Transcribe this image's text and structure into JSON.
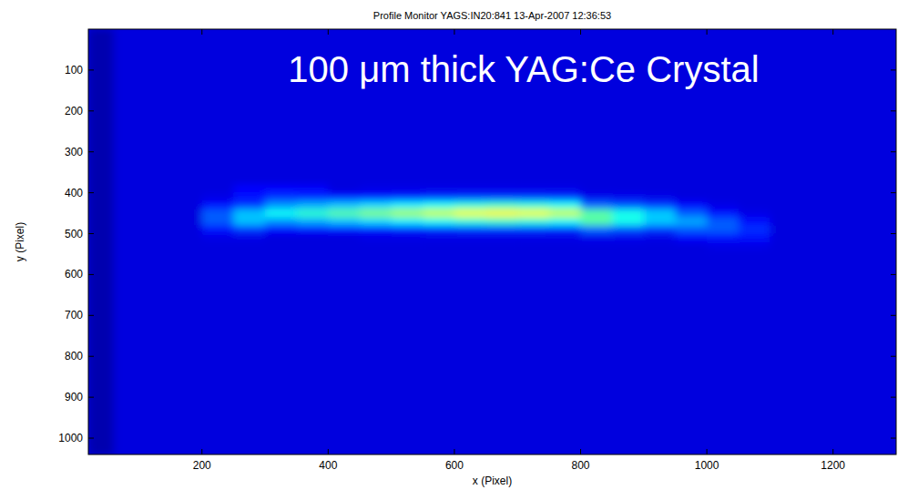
{
  "chart_data": {
    "type": "heatmap",
    "title": "Profile Monitor YAGS:IN20:841 13-Apr-2007 12:36:53",
    "annotation": "100 μm thick YAG:Ce Crystal",
    "x_label": "x (Pixel)",
    "y_label": "y (Pixel)",
    "xlim": [
      20,
      1300
    ],
    "ylim": [
      1040,
      0
    ],
    "xticks": [
      200,
      400,
      600,
      800,
      1000,
      1200
    ],
    "yticks": [
      100,
      200,
      300,
      400,
      500,
      600,
      700,
      800,
      900,
      1000
    ],
    "zlim": [
      0,
      1.3
    ],
    "x_bins": [
      20,
      60,
      200,
      250,
      300,
      350,
      400,
      450,
      500,
      550,
      600,
      650,
      700,
      750,
      800,
      850,
      900,
      950,
      1000,
      1050,
      1100,
      1300
    ],
    "y_bins": [
      0,
      360,
      380,
      400,
      420,
      440,
      460,
      480,
      500,
      520,
      540,
      1040
    ],
    "z": [
      [
        0.06,
        0.12,
        0.12,
        0.12,
        0.12,
        0.12,
        0.12,
        0.12,
        0.12,
        0.12,
        0.12,
        0.12,
        0.12,
        0.12,
        0.12,
        0.12,
        0.12,
        0.12,
        0.12,
        0.12,
        0.12
      ],
      [
        0.06,
        0.12,
        0.12,
        0.12,
        0.12,
        0.12,
        0.12,
        0.12,
        0.12,
        0.12,
        0.12,
        0.12,
        0.12,
        0.12,
        0.12,
        0.12,
        0.12,
        0.12,
        0.12,
        0.12,
        0.12
      ],
      [
        0.06,
        0.12,
        0.12,
        0.17,
        0.17,
        0.16,
        0.12,
        0.13,
        0.13,
        0.13,
        0.13,
        0.13,
        0.13,
        0.13,
        0.12,
        0.12,
        0.12,
        0.12,
        0.12,
        0.12,
        0.12
      ],
      [
        0.06,
        0.12,
        0.13,
        0.18,
        0.22,
        0.21,
        0.19,
        0.19,
        0.2,
        0.21,
        0.22,
        0.22,
        0.22,
        0.21,
        0.14,
        0.14,
        0.13,
        0.12,
        0.12,
        0.12,
        0.12
      ],
      [
        0.06,
        0.12,
        0.18,
        0.23,
        0.35,
        0.38,
        0.41,
        0.44,
        0.47,
        0.5,
        0.53,
        0.55,
        0.53,
        0.5,
        0.29,
        0.26,
        0.23,
        0.16,
        0.13,
        0.12,
        0.12
      ],
      [
        0.06,
        0.12,
        0.28,
        0.41,
        0.5,
        0.55,
        0.6,
        0.65,
        0.7,
        0.75,
        0.8,
        0.82,
        0.8,
        0.75,
        0.6,
        0.51,
        0.42,
        0.28,
        0.18,
        0.13,
        0.12
      ],
      [
        0.06,
        0.12,
        0.28,
        0.41,
        0.35,
        0.38,
        0.41,
        0.44,
        0.47,
        0.5,
        0.53,
        0.55,
        0.53,
        0.5,
        0.6,
        0.51,
        0.42,
        0.38,
        0.28,
        0.18,
        0.12
      ],
      [
        0.06,
        0.12,
        0.18,
        0.23,
        0.17,
        0.18,
        0.19,
        0.19,
        0.2,
        0.21,
        0.22,
        0.22,
        0.22,
        0.21,
        0.29,
        0.26,
        0.23,
        0.28,
        0.28,
        0.22,
        0.12
      ],
      [
        0.06,
        0.12,
        0.13,
        0.13,
        0.12,
        0.12,
        0.12,
        0.13,
        0.13,
        0.13,
        0.13,
        0.13,
        0.13,
        0.13,
        0.14,
        0.14,
        0.13,
        0.16,
        0.18,
        0.18,
        0.12
      ],
      [
        0.06,
        0.12,
        0.12,
        0.12,
        0.12,
        0.12,
        0.12,
        0.12,
        0.12,
        0.12,
        0.12,
        0.12,
        0.12,
        0.12,
        0.12,
        0.12,
        0.12,
        0.12,
        0.13,
        0.13,
        0.12
      ],
      [
        0.06,
        0.12,
        0.12,
        0.12,
        0.12,
        0.12,
        0.12,
        0.12,
        0.12,
        0.12,
        0.12,
        0.12,
        0.12,
        0.12,
        0.12,
        0.12,
        0.12,
        0.12,
        0.12,
        0.12,
        0.12
      ]
    ]
  }
}
